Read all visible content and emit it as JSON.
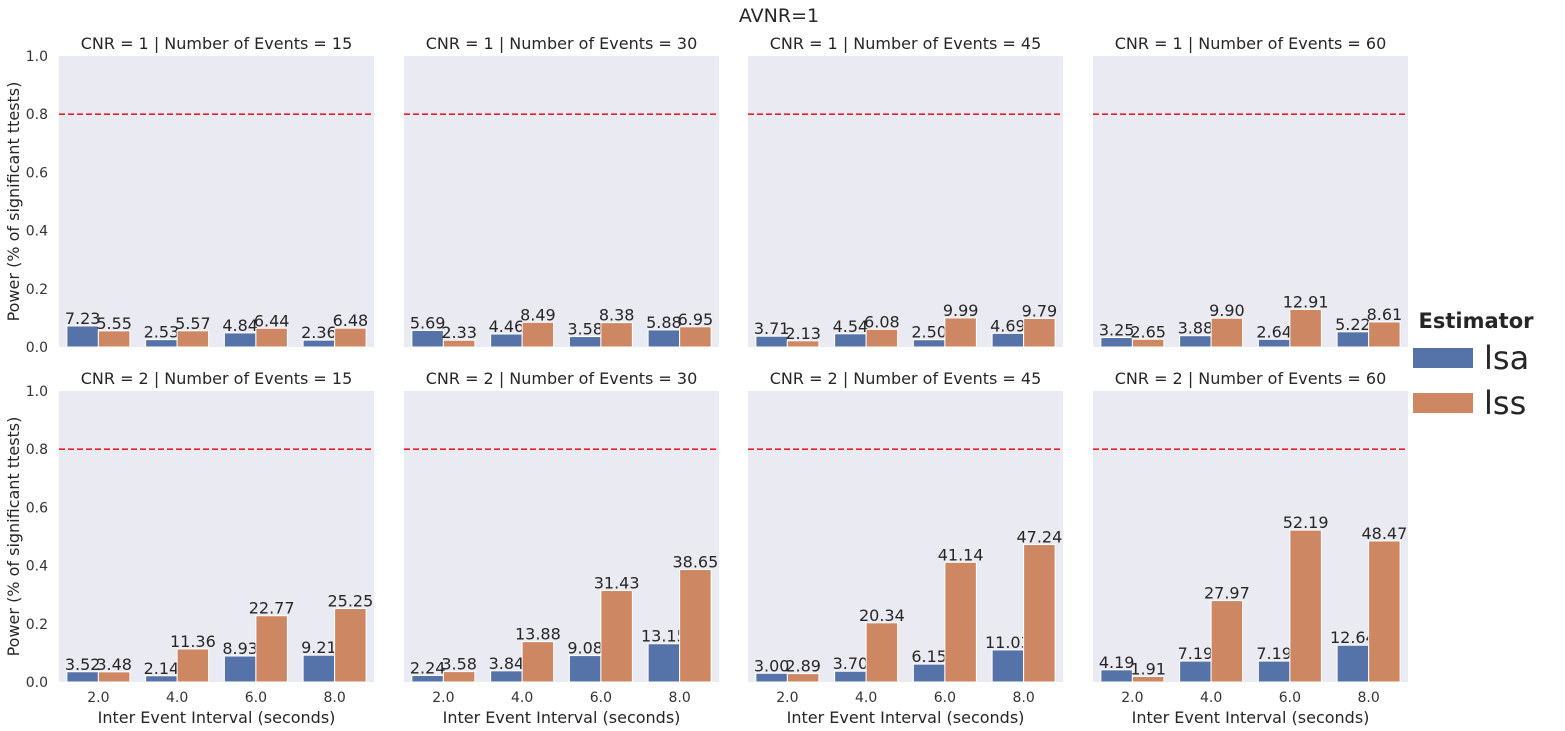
{
  "chart_data": {
    "type": "bar",
    "title": "AVNR=1",
    "xlabel": "Inter Event Interval (seconds)",
    "ylabel": "Power (% of significant ttests)",
    "ylim": [
      0,
      1.0
    ],
    "yticks": [
      "0.0",
      "0.2",
      "0.4",
      "0.6",
      "0.8",
      "1.0"
    ],
    "categories": [
      "2.0",
      "4.0",
      "6.0",
      "8.0"
    ],
    "reference_line": {
      "y": 0.8,
      "color": "#e8202a",
      "style": "dashed"
    },
    "grid": false,
    "legend": {
      "title": "Estimator",
      "placement": "right",
      "entries": [
        {
          "name": "lsa",
          "color": "#5573a8"
        },
        {
          "name": "lss",
          "color": "#cd8863"
        }
      ]
    },
    "panels": [
      {
        "title": "CNR = 1 | Number of Events = 15",
        "series": [
          {
            "name": "lsa",
            "values": [
              0.0723,
              0.0253,
              0.0484,
              0.0236
            ],
            "labels": [
              "7.23",
              "2.53",
              "4.84",
              "2.36"
            ]
          },
          {
            "name": "lss",
            "values": [
              0.0555,
              0.0557,
              0.0644,
              0.0648
            ],
            "labels": [
              "5.55",
              "5.57",
              "6.44",
              "6.48"
            ]
          }
        ]
      },
      {
        "title": "CNR = 1 | Number of Events = 30",
        "series": [
          {
            "name": "lsa",
            "values": [
              0.0569,
              0.0446,
              0.0358,
              0.0588
            ],
            "labels": [
              "5.69",
              "4.46",
              "3.58",
              "5.88"
            ]
          },
          {
            "name": "lss",
            "values": [
              0.0233,
              0.0849,
              0.0838,
              0.0695
            ],
            "labels": [
              "2.33",
              "8.49",
              "8.38",
              "6.95"
            ]
          }
        ]
      },
      {
        "title": "CNR = 1 | Number of Events = 45",
        "series": [
          {
            "name": "lsa",
            "values": [
              0.0371,
              0.0454,
              0.025,
              0.0469
            ],
            "labels": [
              "3.71",
              "4.54",
              "2.50",
              "4.69"
            ]
          },
          {
            "name": "lss",
            "values": [
              0.0213,
              0.0608,
              0.0999,
              0.0979
            ],
            "labels": [
              "2.13",
              "6.08",
              "9.99",
              "9.79"
            ]
          }
        ]
      },
      {
        "title": "CNR = 1 | Number of Events = 60",
        "series": [
          {
            "name": "lsa",
            "values": [
              0.0325,
              0.0388,
              0.0264,
              0.0522
            ],
            "labels": [
              "3.25",
              "3.88",
              "2.64",
              "5.22"
            ]
          },
          {
            "name": "lss",
            "values": [
              0.0265,
              0.099,
              0.1291,
              0.0861
            ],
            "labels": [
              "2.65",
              "9.90",
              "12.91",
              "8.61"
            ]
          }
        ]
      },
      {
        "title": "CNR = 2 | Number of Events = 15",
        "series": [
          {
            "name": "lsa",
            "values": [
              0.0352,
              0.0214,
              0.0893,
              0.0921
            ],
            "labels": [
              "3.52",
              "2.14",
              "8.93",
              "9.21"
            ]
          },
          {
            "name": "lss",
            "values": [
              0.0348,
              0.1136,
              0.2277,
              0.2525
            ],
            "labels": [
              "3.48",
              "11.36",
              "22.77",
              "25.25"
            ]
          }
        ]
      },
      {
        "title": "CNR = 2 | Number of Events = 30",
        "series": [
          {
            "name": "lsa",
            "values": [
              0.0224,
              0.0384,
              0.0908,
              0.1315
            ],
            "labels": [
              "2.24",
              "3.84",
              "9.08",
              "13.15"
            ]
          },
          {
            "name": "lss",
            "values": [
              0.0358,
              0.1388,
              0.3143,
              0.3865
            ],
            "labels": [
              "3.58",
              "13.88",
              "31.43",
              "38.65"
            ]
          }
        ]
      },
      {
        "title": "CNR = 2 | Number of Events = 45",
        "series": [
          {
            "name": "lsa",
            "values": [
              0.03,
              0.037,
              0.0615,
              0.1103
            ],
            "labels": [
              "3.00",
              "3.70",
              "6.15",
              "11.03"
            ]
          },
          {
            "name": "lss",
            "values": [
              0.0289,
              0.2034,
              0.4114,
              0.4724
            ],
            "labels": [
              "2.89",
              "20.34",
              "41.14",
              "47.24"
            ]
          }
        ]
      },
      {
        "title": "CNR = 2 | Number of Events = 60",
        "series": [
          {
            "name": "lsa",
            "values": [
              0.0419,
              0.0719,
              0.0719,
              0.1264
            ],
            "labels": [
              "4.19",
              "7.19",
              "7.19",
              "12.64"
            ]
          },
          {
            "name": "lss",
            "values": [
              0.0191,
              0.2797,
              0.5219,
              0.4847
            ],
            "labels": [
              "1.91",
              "27.97",
              "52.19",
              "48.47"
            ]
          }
        ]
      }
    ]
  }
}
